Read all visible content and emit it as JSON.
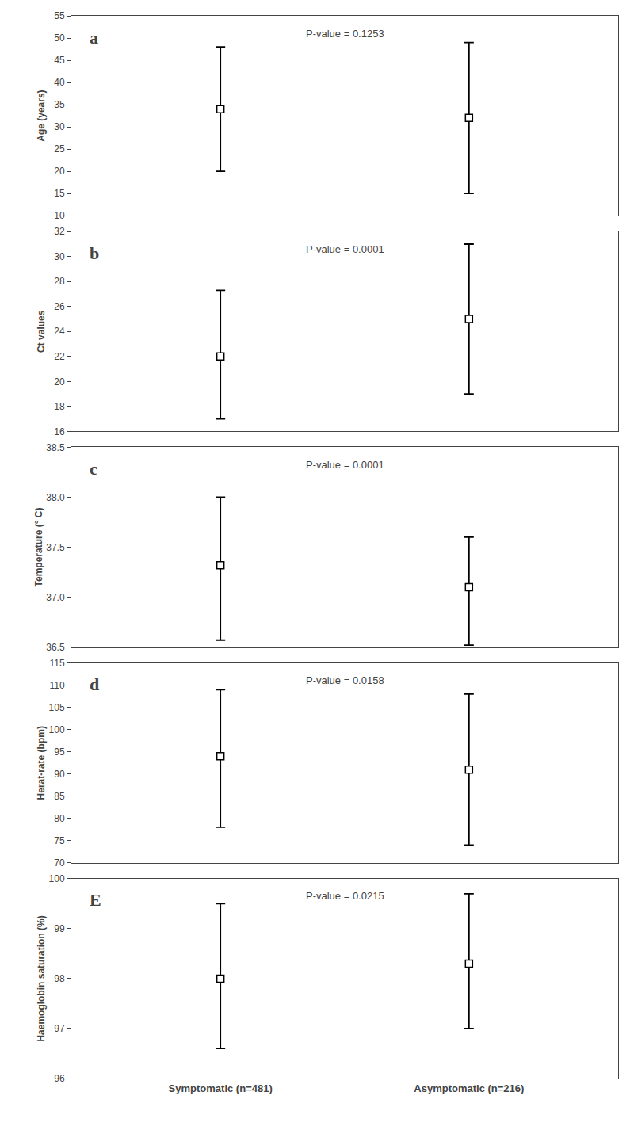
{
  "chart_data": [
    {
      "type": "scatter",
      "ylabel": "Age (years)",
      "annotations": [
        "a",
        "P-value = 0.1253"
      ],
      "categories": [
        "Symptomatic (n=481)",
        "Asymptomatic (n=216)"
      ],
      "values": [
        34,
        32
      ],
      "lower": [
        20,
        15
      ],
      "upper": [
        48,
        49
      ],
      "ylim": [
        10,
        55
      ],
      "yticks": [
        10,
        15,
        20,
        25,
        30,
        35,
        40,
        45,
        50,
        55
      ],
      "marker": "square",
      "color": "black",
      "grid": false,
      "tick_labels": "y"
    },
    {
      "type": "scatter",
      "ylabel": "Ct values",
      "annotations": [
        "b",
        "P-value = 0.0001"
      ],
      "categories": [
        "Symptomatic (n=481)",
        "Asymptomatic (n=216)"
      ],
      "values": [
        22,
        25
      ],
      "lower": [
        17,
        19
      ],
      "upper": [
        27.3,
        31
      ],
      "ylim": [
        16,
        32
      ],
      "yticks": [
        16,
        18,
        20,
        22,
        24,
        26,
        28,
        30,
        32
      ],
      "marker": "square",
      "color": "black",
      "grid": false,
      "tick_labels": "y"
    },
    {
      "type": "scatter",
      "ylabel": "Temperature (° C)",
      "annotations": [
        "c",
        "P-value = 0.0001"
      ],
      "categories": [
        "Symptomatic (n=481)",
        "Asymptomatic (n=216)"
      ],
      "values": [
        37.32,
        37.1
      ],
      "lower": [
        36.57,
        36.52
      ],
      "upper": [
        38.0,
        37.6
      ],
      "ylim": [
        36.5,
        38.5
      ],
      "yticks": [
        36.5,
        {
          "value": 37.0,
          "label": "37.0"
        },
        37.5,
        {
          "value": 38.0,
          "label": "38.0"
        },
        38.5
      ],
      "marker": "square",
      "color": "black",
      "grid": false,
      "tick_labels": "y"
    },
    {
      "type": "scatter",
      "ylabel": "Herat-rate (bpm)",
      "annotations": [
        "d",
        "P-value = 0.0158"
      ],
      "categories": [
        "Symptomatic (n=481)",
        "Asymptomatic (n=216)"
      ],
      "values": [
        94,
        91
      ],
      "lower": [
        78,
        74
      ],
      "upper": [
        109,
        108
      ],
      "ylim": [
        70,
        115
      ],
      "yticks": [
        70,
        75,
        80,
        85,
        90,
        95,
        100,
        105,
        110,
        115
      ],
      "marker": "square",
      "color": "black",
      "grid": false,
      "tick_labels": "y"
    },
    {
      "type": "scatter",
      "ylabel": "Haemoglobin saturation (%)",
      "annotations": [
        "E",
        "P-value = 0.0215"
      ],
      "categories": [
        "Symptomatic (n=481)",
        "Asymptomatic (n=216)"
      ],
      "values": [
        98.0,
        98.3
      ],
      "lower": [
        96.6,
        97.0
      ],
      "upper": [
        99.5,
        99.7
      ],
      "ylim": [
        96,
        100
      ],
      "yticks": [
        96,
        97,
        98,
        99,
        100
      ],
      "marker": "square",
      "color": "black",
      "grid": false
    }
  ]
}
